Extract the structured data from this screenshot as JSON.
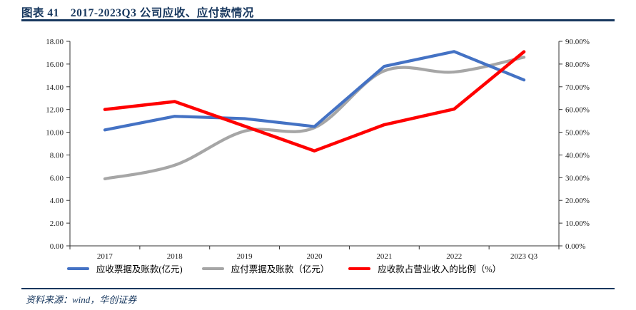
{
  "header": {
    "title_prefix": "图表 41",
    "title_main": "2017-2023Q3 公司应收、应付款情况"
  },
  "footer": {
    "source_label": "资料来源：wind，华创证券"
  },
  "colors": {
    "accent_dark_blue": "#17375E",
    "axis_line": "#333333"
  },
  "chart_data": {
    "type": "line",
    "title": "2017-2023Q3 公司应收、应付款情况",
    "categories": [
      "2017",
      "2018",
      "2019",
      "2020",
      "2021",
      "2022",
      "2023 Q3"
    ],
    "series": [
      {
        "name": "应收票据及账款(亿元)",
        "axis": "left",
        "color": "#4472C4",
        "smooth": false,
        "width": 4.2,
        "values": [
          10.2,
          11.4,
          11.2,
          10.5,
          15.8,
          17.1,
          14.6
        ]
      },
      {
        "name": "应付票据及账款（亿元）",
        "axis": "left",
        "color": "#A6A6A6",
        "smooth": true,
        "width": 4.2,
        "values": [
          5.9,
          7.1,
          10.1,
          10.4,
          15.4,
          15.3,
          16.6
        ]
      },
      {
        "name": "应收款占营业收入的比例（%）",
        "axis": "right",
        "color": "#FF0000",
        "smooth": false,
        "width": 4.5,
        "values": [
          60.0,
          63.5,
          52.7,
          41.8,
          53.3,
          60.2,
          85.4
        ]
      }
    ],
    "left_axis": {
      "min": 0,
      "max": 18,
      "step": 2,
      "format": "fixed2"
    },
    "right_axis": {
      "min": 0,
      "max": 90,
      "step": 10,
      "format": "percent2"
    },
    "grid": false,
    "legend_position": "bottom"
  }
}
